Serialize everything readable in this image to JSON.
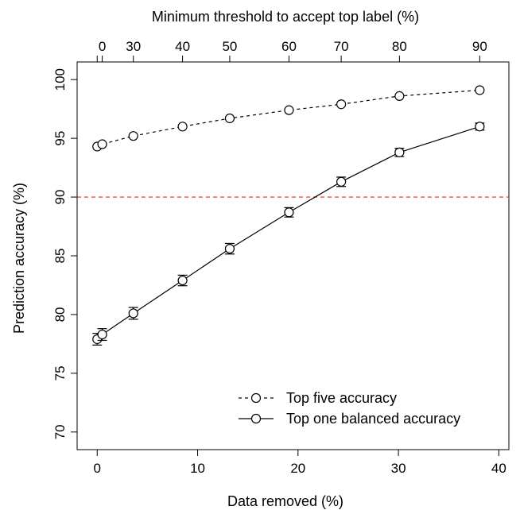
{
  "chart_data": {
    "type": "line",
    "title": "",
    "xlabel": "Data removed (%)",
    "ylabel": "Prediction accuracy (%)",
    "top_axis_label": "Minimum threshold to accept top label (%)",
    "xlim": [
      -2,
      41
    ],
    "ylim": [
      68.5,
      101.5
    ],
    "x_ticks": [
      "0",
      "10",
      "20",
      "30",
      "40"
    ],
    "x_tick_values": [
      0,
      10,
      20,
      30,
      40
    ],
    "y_ticks": [
      "70",
      "75",
      "80",
      "85",
      "90",
      "95",
      "100"
    ],
    "y_tick_values": [
      70,
      75,
      80,
      85,
      90,
      95,
      100
    ],
    "top_ticks": [
      {
        "label": "0",
        "x": 0.5
      },
      {
        "label": "30",
        "x": 3.6
      },
      {
        "label": "40",
        "x": 8.5
      },
      {
        "label": "50",
        "x": 13.2
      },
      {
        "label": "60",
        "x": 19.1
      },
      {
        "label": "70",
        "x": 24.3
      },
      {
        "label": "80",
        "x": 30.1
      },
      {
        "label": "90",
        "x": 38.1
      }
    ],
    "top_extra_tick_x": 0.0,
    "reference_line": {
      "y": 90,
      "color": "#e8251e",
      "style": "dashed"
    },
    "grid": false,
    "legend_placement": "bottom-right",
    "series": [
      {
        "name": "Top five accuracy",
        "line_style": "dashed",
        "x": [
          0.0,
          0.5,
          3.6,
          8.5,
          13.2,
          19.1,
          24.3,
          30.1,
          38.1
        ],
        "y": [
          94.3,
          94.5,
          95.2,
          96.0,
          96.7,
          97.4,
          97.9,
          98.6,
          99.1
        ],
        "err": [
          0,
          0,
          0,
          0,
          0,
          0,
          0,
          0,
          0
        ]
      },
      {
        "name": "Top one balanced accuracy",
        "line_style": "solid",
        "x": [
          0.0,
          0.5,
          3.6,
          8.5,
          13.2,
          19.1,
          24.3,
          30.1,
          38.1
        ],
        "y": [
          77.9,
          78.3,
          80.1,
          82.9,
          85.6,
          88.7,
          91.3,
          93.8,
          96.0
        ],
        "err": [
          0.5,
          0.5,
          0.5,
          0.45,
          0.45,
          0.4,
          0.4,
          0.35,
          0.3
        ]
      }
    ]
  }
}
